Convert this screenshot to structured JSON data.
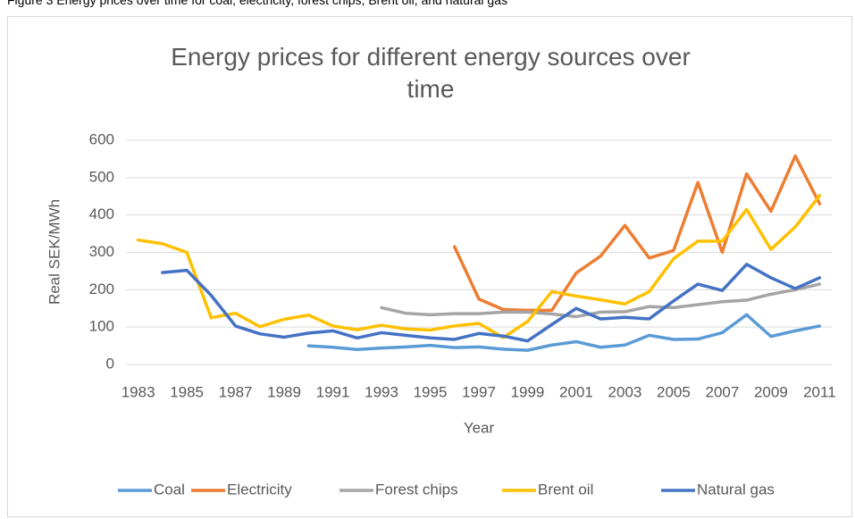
{
  "caption": "Figure 3 Energy prices over time for coal, electricity, forest chips, Brent oil, and natural gas",
  "chart_data": {
    "type": "line",
    "title": "Energy prices for different energy sources over time",
    "x_label": "Year",
    "y_label": "Real SEK/MWh",
    "categories": [
      "1983",
      null,
      "1985",
      null,
      "1987",
      null,
      "1989",
      null,
      "1991",
      null,
      "1993",
      null,
      "1995",
      null,
      "1997",
      null,
      "1999",
      null,
      "2001",
      null,
      "2003",
      null,
      "2005",
      null,
      "2007",
      null,
      "2009",
      null,
      "2011"
    ],
    "ylim": [
      0,
      600
    ],
    "yticks": [
      0,
      100,
      200,
      300,
      400,
      500,
      600
    ],
    "grid": true,
    "legend": "bottom",
    "series": [
      {
        "name": "Coal",
        "color": "#5b9bd5",
        "values": [
          null,
          null,
          null,
          null,
          null,
          null,
          null,
          50,
          46,
          40,
          44,
          47,
          51,
          45,
          47,
          41,
          38,
          52,
          61,
          46,
          52,
          78,
          67,
          68,
          85,
          133,
          75,
          90,
          103
        ]
      },
      {
        "name": "Electricity",
        "color": "#ed7d31",
        "values": [
          null,
          null,
          null,
          null,
          null,
          null,
          null,
          null,
          null,
          null,
          null,
          null,
          null,
          315,
          175,
          147,
          145,
          145,
          245,
          290,
          372,
          285,
          305,
          487,
          300,
          510,
          410,
          558,
          430
        ]
      },
      {
        "name": "Forest chips",
        "color": "#a5a5a5",
        "values": [
          null,
          null,
          null,
          null,
          null,
          null,
          null,
          null,
          null,
          null,
          152,
          137,
          133,
          136,
          136,
          140,
          140,
          135,
          128,
          140,
          141,
          155,
          152,
          160,
          168,
          172,
          188,
          200,
          215
        ]
      },
      {
        "name": "Brent oil",
        "color": "#ffc000",
        "values": [
          333,
          323,
          300,
          125,
          137,
          101,
          121,
          132,
          103,
          93,
          105,
          95,
          92,
          103,
          110,
          72,
          115,
          195,
          183,
          173,
          162,
          195,
          283,
          330,
          330,
          415,
          308,
          368,
          452
        ]
      },
      {
        "name": "Natural gas",
        "color": "#4472c4",
        "values": [
          null,
          246,
          252,
          185,
          103,
          82,
          73,
          84,
          90,
          71,
          85,
          78,
          71,
          67,
          83,
          76,
          63,
          107,
          150,
          122,
          126,
          122,
          170,
          215,
          198,
          268,
          232,
          203,
          232
        ]
      }
    ]
  }
}
